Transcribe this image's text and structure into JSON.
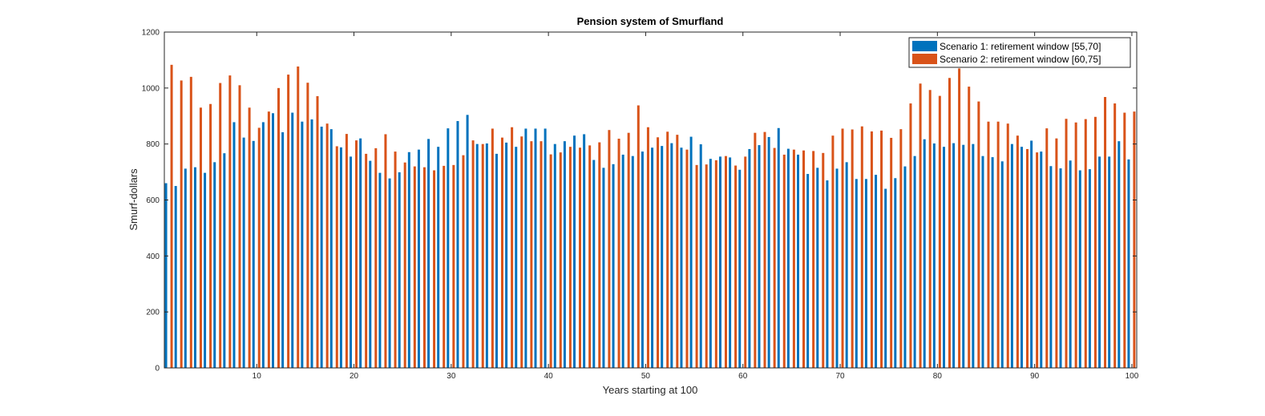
{
  "chart_data": {
    "type": "bar",
    "title": "Pension system of Smurfland",
    "xlabel": "Years starting at 100",
    "ylabel": "Smurf-dollars",
    "xlim": [
      0.5,
      100.5
    ],
    "ylim": [
      0,
      1200
    ],
    "xticks": [
      10,
      20,
      30,
      40,
      50,
      60,
      70,
      80,
      90,
      100
    ],
    "yticks": [
      0,
      200,
      400,
      600,
      800,
      1000,
      1200
    ],
    "grid": false,
    "legend_position": "top-right",
    "x": [
      1,
      2,
      3,
      4,
      5,
      6,
      7,
      8,
      9,
      10,
      11,
      12,
      13,
      14,
      15,
      16,
      17,
      18,
      19,
      20,
      21,
      22,
      23,
      24,
      25,
      26,
      27,
      28,
      29,
      30,
      31,
      32,
      33,
      34,
      35,
      36,
      37,
      38,
      39,
      40,
      41,
      42,
      43,
      44,
      45,
      46,
      47,
      48,
      49,
      50,
      51,
      52,
      53,
      54,
      55,
      56,
      57,
      58,
      59,
      60,
      61,
      62,
      63,
      64,
      65,
      66,
      67,
      68,
      69,
      70,
      71,
      72,
      73,
      74,
      75,
      76,
      77,
      78,
      79,
      80,
      81,
      82,
      83,
      84,
      85,
      86,
      87,
      88,
      89,
      90,
      91,
      92,
      93,
      94,
      95,
      96,
      97,
      98,
      99,
      100
    ],
    "series": [
      {
        "name": "Scenario 1: retirement window [55,70]",
        "color": "#0072BD",
        "values": [
          660,
          650,
          712,
          717,
          697,
          735,
          767,
          878,
          823,
          811,
          878,
          910,
          842,
          912,
          880,
          888,
          862,
          853,
          788,
          755,
          820,
          740,
          697,
          677,
          699,
          771,
          780,
          818,
          790,
          856,
          882,
          904,
          800,
          802,
          765,
          805,
          790,
          855,
          855,
          855,
          800,
          810,
          830,
          835,
          743,
          715,
          728,
          762,
          757,
          773,
          787,
          793,
          803,
          787,
          826,
          799,
          747,
          755,
          752,
          708,
          782,
          796,
          825,
          857,
          783,
          762,
          693,
          715,
          670,
          712,
          735,
          675,
          675,
          690,
          640,
          678,
          720,
          757,
          817,
          802,
          790,
          803,
          797,
          800,
          757,
          753,
          738,
          800,
          790,
          812,
          773,
          721,
          713,
          741,
          706,
          710,
          755,
          755,
          810,
          745
        ]
      },
      {
        "name": "Scenario 2: retirement window [60,75]",
        "color": "#D95319",
        "values": [
          1083,
          1027,
          1040,
          930,
          943,
          1018,
          1045,
          1010,
          930,
          858,
          916,
          1000,
          1048,
          1077,
          1019,
          971,
          873,
          792,
          836,
          813,
          765,
          785,
          835,
          773,
          734,
          720,
          717,
          706,
          722,
          725,
          760,
          813,
          800,
          855,
          823,
          860,
          827,
          810,
          810,
          763,
          770,
          790,
          787,
          795,
          806,
          850,
          819,
          840,
          938,
          860,
          824,
          844,
          833,
          780,
          725,
          727,
          742,
          757,
          723,
          755,
          840,
          843,
          786,
          762,
          780,
          777,
          775,
          768,
          830,
          855,
          852,
          863,
          845,
          848,
          822,
          853,
          945,
          1016,
          993,
          972,
          1036,
          1070,
          1005,
          952,
          880,
          880,
          873,
          830,
          782,
          770,
          856,
          820,
          890,
          877,
          889,
          897,
          968,
          945,
          912,
          916
        ]
      }
    ]
  }
}
